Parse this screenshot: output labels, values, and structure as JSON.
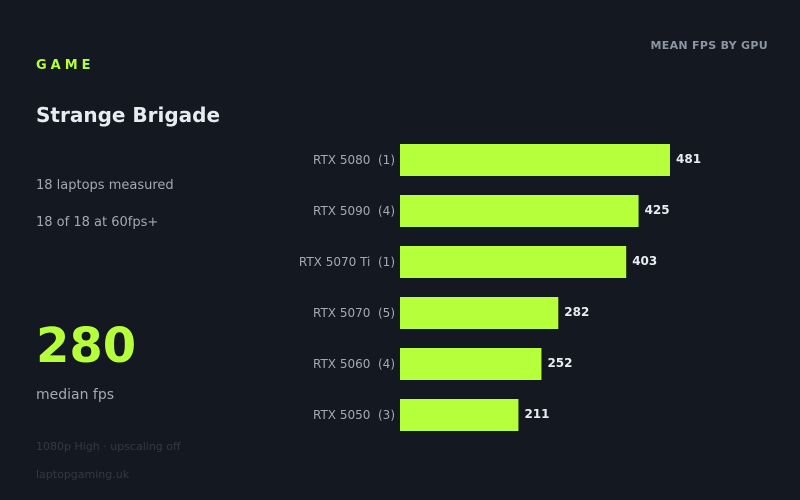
{
  "panel": {
    "eyebrow": "GAME",
    "title": "Strange Brigade",
    "stats": [
      "18 laptops measured",
      "18 of 18 at 60fps+"
    ],
    "median_value": "280",
    "median_caption": "median fps",
    "settings_note": "1080p High · upscaling off",
    "source": "laptopgaming.uk"
  },
  "colors": {
    "accent": "#b6ff3b",
    "background": "#131821",
    "label": "#a3aab5",
    "value_label": "#e8ebf0"
  },
  "chart_data": {
    "type": "bar",
    "orientation": "horizontal",
    "title": "MEAN FPS BY GPU",
    "categories": [
      "RTX 5080",
      "RTX 5090",
      "RTX 5070 Ti",
      "RTX 5070",
      "RTX 5060",
      "RTX 5050"
    ],
    "counts": [
      "(1)",
      "(4)",
      "(1)",
      "(5)",
      "(4)",
      "(3)"
    ],
    "values": [
      481,
      425,
      403,
      282,
      252,
      211
    ],
    "xlim": [
      0,
      700
    ],
    "grid": false,
    "legend": "none"
  }
}
